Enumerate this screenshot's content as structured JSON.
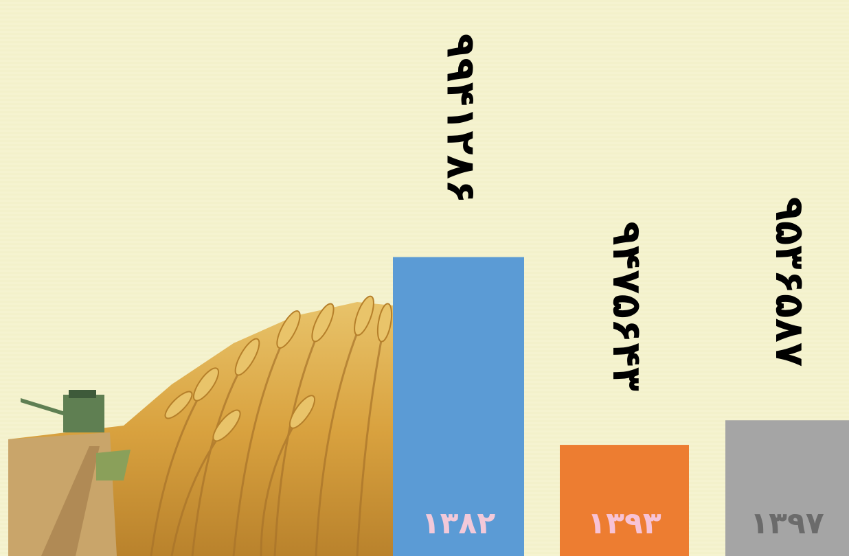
{
  "chart_data": {
    "type": "bar",
    "categories": [
      "۱۳۸۲",
      "۱۳۹۳",
      "۱۳۹۷"
    ],
    "values": [
      9941286,
      9475643,
      9536587
    ],
    "value_labels": [
      "۹۹۴۱۲۸۶",
      "۹۴۷۵۶۴۳",
      "۹۵۳۶۵۸۷"
    ],
    "colors": [
      "#5b9bd5",
      "#ed7d31",
      "#a5a5a5"
    ],
    "label_colors": [
      "#f2c9d9",
      "#f7c3d6",
      "#6b6b6b"
    ],
    "ylim": [
      9200000,
      10000000
    ]
  }
}
